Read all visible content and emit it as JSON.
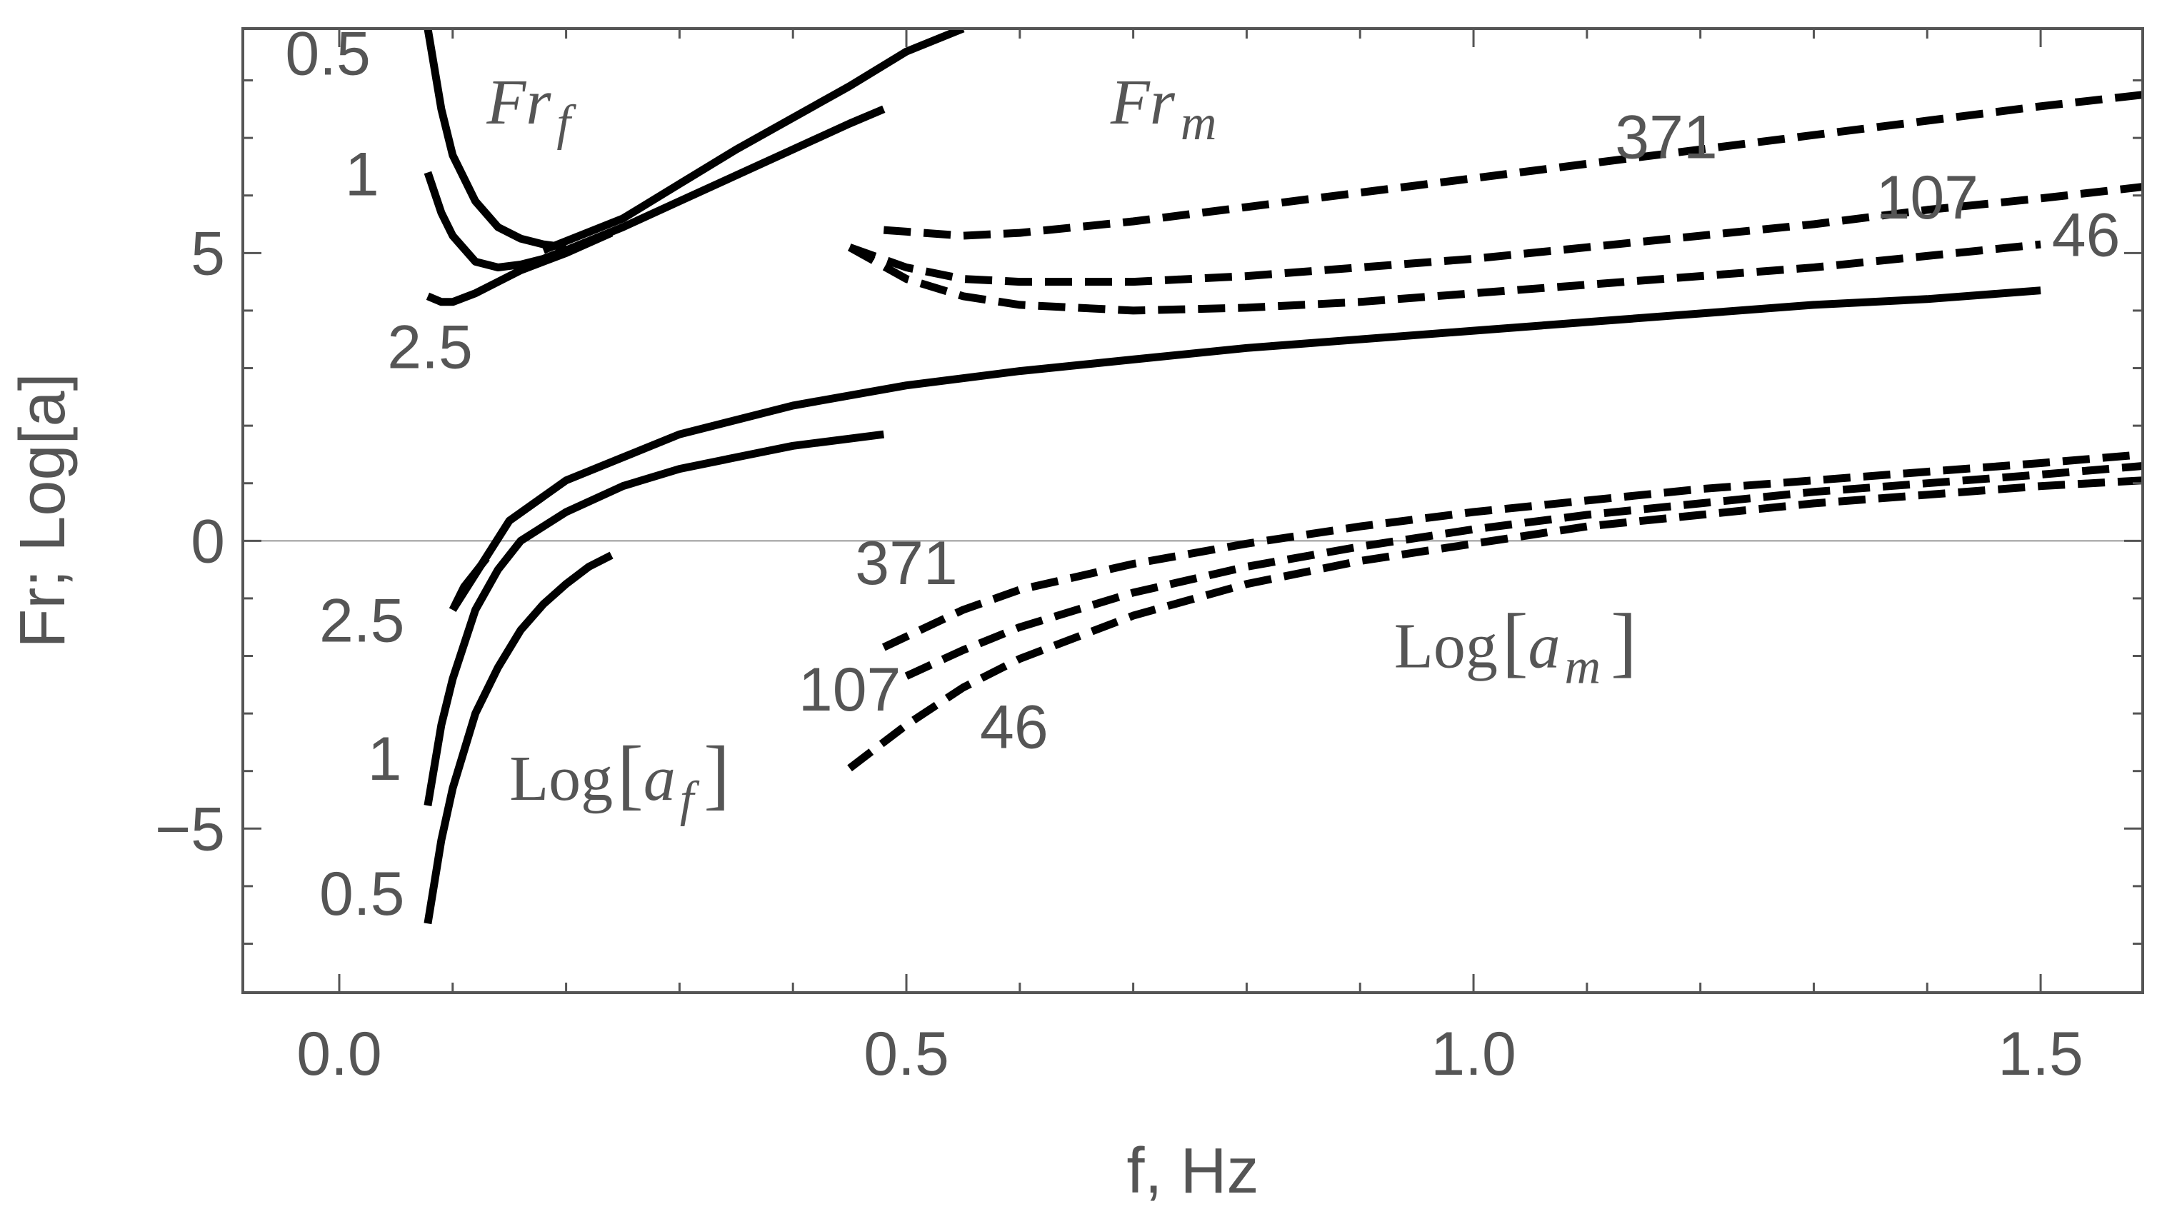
{
  "chart_data": {
    "type": "line",
    "xlabel": "f, Hz",
    "ylabel": "Fr; Log[a]",
    "xlim": [
      -0.085,
      1.59
    ],
    "ylim": [
      -7.85,
      8.9
    ],
    "x_ticks": [
      {
        "value": 0.0,
        "label": "0.0"
      },
      {
        "value": 0.5,
        "label": "0.5"
      },
      {
        "value": 1.0,
        "label": "1.0"
      },
      {
        "value": 1.5,
        "label": "1.5"
      }
    ],
    "y_ticks": [
      {
        "value": -5,
        "label": "−5"
      },
      {
        "value": 0,
        "label": "0"
      },
      {
        "value": 5,
        "label": "5"
      }
    ],
    "grid": false,
    "zero_line": true,
    "series": [
      {
        "group": "Fr_f",
        "label": "0.5",
        "style": "solid",
        "x": [
          0.078,
          0.09,
          0.1,
          0.12,
          0.14,
          0.16,
          0.18,
          0.2
        ],
        "y": [
          8.9,
          7.5,
          6.7,
          5.9,
          5.45,
          5.25,
          5.15,
          5.1
        ]
      },
      {
        "group": "Fr_f",
        "label": "1",
        "style": "solid",
        "x": [
          0.078,
          0.09,
          0.1,
          0.12,
          0.14,
          0.16,
          0.18,
          0.2
        ],
        "y": [
          6.4,
          5.7,
          5.3,
          4.85,
          4.75,
          4.8,
          4.9,
          5.05
        ]
      },
      {
        "group": "Fr_f",
        "label": "2.5",
        "style": "solid",
        "x": [
          0.078,
          0.09,
          0.1,
          0.12,
          0.14,
          0.16,
          0.18,
          0.2,
          0.24
        ],
        "y": [
          4.25,
          4.15,
          4.15,
          4.3,
          4.5,
          4.7,
          4.85,
          5.0,
          5.35
        ]
      },
      {
        "group": "Fr_f",
        "label": "",
        "style": "solid",
        "x": [
          0.18,
          0.25,
          0.3,
          0.35,
          0.4,
          0.45,
          0.5,
          0.55
        ],
        "y": [
          5.05,
          5.6,
          6.2,
          6.8,
          7.35,
          7.9,
          8.5,
          8.9
        ]
      },
      {
        "group": "Fr_f",
        "label": "",
        "style": "solid",
        "x": [
          0.2,
          0.25,
          0.3,
          0.35,
          0.4,
          0.45,
          0.48
        ],
        "y": [
          5.05,
          5.45,
          5.9,
          6.35,
          6.8,
          7.25,
          7.5
        ]
      },
      {
        "group": "Fr_m",
        "label": "371",
        "style": "dashed",
        "x": [
          0.48,
          0.55,
          0.6,
          0.7,
          0.8,
          0.9,
          1.0,
          1.1,
          1.2,
          1.3,
          1.4,
          1.5,
          1.59
        ],
        "y": [
          5.4,
          5.3,
          5.35,
          5.55,
          5.8,
          6.05,
          6.3,
          6.55,
          6.8,
          7.05,
          7.3,
          7.55,
          7.75
        ]
      },
      {
        "group": "Fr_m",
        "label": "107",
        "style": "dashed",
        "x": [
          0.45,
          0.5,
          0.55,
          0.6,
          0.7,
          0.8,
          0.9,
          1.0,
          1.1,
          1.2,
          1.3,
          1.4,
          1.5,
          1.59
        ],
        "y": [
          5.1,
          4.75,
          4.55,
          4.5,
          4.5,
          4.6,
          4.75,
          4.9,
          5.1,
          5.3,
          5.5,
          5.75,
          5.95,
          6.15
        ]
      },
      {
        "group": "Fr_m",
        "label": "46",
        "style": "dashed",
        "x": [
          0.45,
          0.5,
          0.55,
          0.6,
          0.65,
          0.7,
          0.8,
          0.9,
          1.0,
          1.1,
          1.2,
          1.3,
          1.4,
          1.5
        ],
        "y": [
          5.1,
          4.55,
          4.25,
          4.1,
          4.05,
          4.0,
          4.05,
          4.15,
          4.3,
          4.45,
          4.6,
          4.75,
          4.95,
          5.15
        ]
      },
      {
        "group": "Fr_f",
        "label": "",
        "style": "solid",
        "x": [
          0.1,
          0.15,
          0.2,
          0.3,
          0.4,
          0.5,
          0.6,
          0.7,
          0.8,
          0.9,
          1.0,
          1.1,
          1.2,
          1.3,
          1.4,
          1.5
        ],
        "y": [
          -1.2,
          0.35,
          1.05,
          1.85,
          2.35,
          2.7,
          2.95,
          3.15,
          3.35,
          3.5,
          3.65,
          3.8,
          3.95,
          4.1,
          4.2,
          4.35
        ]
      },
      {
        "group": "Log_a_f",
        "label": "2.5",
        "style": "solid",
        "x": [
          0.1,
          0.105,
          0.11,
          0.12,
          0.13
        ],
        "y": [
          -1.2,
          -1.0,
          -0.8,
          -0.55,
          -0.3
        ]
      },
      {
        "group": "Log_a_f",
        "label": "1",
        "style": "solid",
        "x": [
          0.078,
          0.09,
          0.1,
          0.12,
          0.14,
          0.16,
          0.2,
          0.25,
          0.3,
          0.35,
          0.4,
          0.48
        ],
        "y": [
          -4.6,
          -3.2,
          -2.4,
          -1.2,
          -0.5,
          0.0,
          0.5,
          0.95,
          1.25,
          1.45,
          1.65,
          1.85
        ]
      },
      {
        "group": "Log_a_f",
        "label": "0.5",
        "style": "solid",
        "x": [
          0.078,
          0.09,
          0.1,
          0.12,
          0.14,
          0.16,
          0.18,
          0.2,
          0.22,
          0.24
        ],
        "y": [
          -6.65,
          -5.2,
          -4.3,
          -3.0,
          -2.2,
          -1.55,
          -1.1,
          -0.75,
          -0.45,
          -0.25
        ]
      },
      {
        "group": "Log_a_m",
        "label": "371",
        "style": "dashed",
        "x": [
          0.48,
          0.55,
          0.6,
          0.7,
          0.8,
          0.9,
          1.0,
          1.1,
          1.2,
          1.3,
          1.4,
          1.5,
          1.59
        ],
        "y": [
          -1.85,
          -1.2,
          -0.85,
          -0.4,
          -0.05,
          0.25,
          0.5,
          0.7,
          0.9,
          1.05,
          1.2,
          1.35,
          1.5
        ]
      },
      {
        "group": "Log_a_m",
        "label": "107",
        "style": "dashed",
        "x": [
          0.5,
          0.55,
          0.6,
          0.7,
          0.8,
          0.9,
          1.0,
          1.1,
          1.2,
          1.3,
          1.4,
          1.5,
          1.59
        ],
        "y": [
          -2.35,
          -1.9,
          -1.5,
          -0.9,
          -0.45,
          -0.1,
          0.2,
          0.45,
          0.65,
          0.85,
          1.0,
          1.15,
          1.3
        ]
      },
      {
        "group": "Log_a_m",
        "label": "46",
        "style": "dashed",
        "x": [
          0.45,
          0.5,
          0.55,
          0.6,
          0.7,
          0.8,
          0.9,
          1.0,
          1.1,
          1.2,
          1.3,
          1.4,
          1.5,
          1.59
        ],
        "y": [
          -3.95,
          -3.2,
          -2.55,
          -2.05,
          -1.3,
          -0.75,
          -0.35,
          -0.05,
          0.25,
          0.45,
          0.65,
          0.8,
          0.95,
          1.05
        ]
      }
    ],
    "annotations": [
      {
        "text": "0.5",
        "x": -0.01,
        "y": 8.1,
        "kind": "num"
      },
      {
        "text": "1",
        "x": 0.02,
        "y": 6.0,
        "kind": "num"
      },
      {
        "text": "2.5",
        "x": 0.08,
        "y": 3.0,
        "kind": "num"
      },
      {
        "text": "371",
        "x": 1.17,
        "y": 6.65,
        "kind": "num"
      },
      {
        "text": "107",
        "x": 1.4,
        "y": 5.6,
        "kind": "num"
      },
      {
        "text": "46",
        "x": 1.54,
        "y": 4.95,
        "kind": "num"
      },
      {
        "text": "2.5",
        "x": 0.02,
        "y": -1.75,
        "kind": "num"
      },
      {
        "text": "1",
        "x": 0.04,
        "y": -4.15,
        "kind": "num"
      },
      {
        "text": "0.5",
        "x": 0.02,
        "y": -6.5,
        "kind": "num"
      },
      {
        "text": "371",
        "x": 0.5,
        "y": -0.75,
        "kind": "num"
      },
      {
        "text": "107",
        "x": 0.45,
        "y": -2.95,
        "kind": "num"
      },
      {
        "text": "46",
        "x": 0.595,
        "y": -3.6,
        "kind": "num"
      },
      {
        "text": "Fr",
        "sub": "f",
        "x": 0.13,
        "y": 7.25,
        "kind": "italic"
      },
      {
        "text": "Fr",
        "sub": "m",
        "x": 0.68,
        "y": 7.25,
        "kind": "italic"
      },
      {
        "text": "Log",
        "arg": "a",
        "sub": "f",
        "x": 0.15,
        "y": -4.5,
        "kind": "log"
      },
      {
        "text": "Log",
        "arg": "a",
        "sub": "m",
        "x": 0.93,
        "y": -2.2,
        "kind": "log"
      }
    ]
  }
}
